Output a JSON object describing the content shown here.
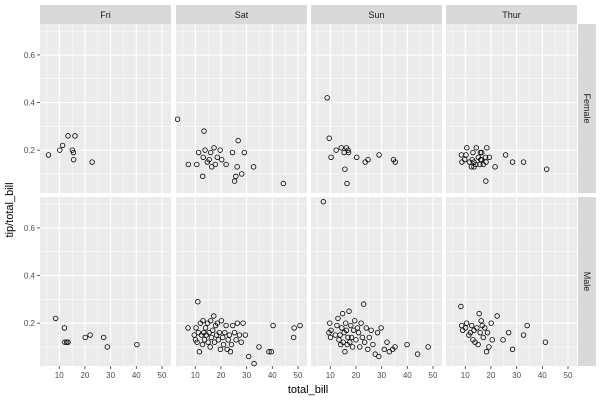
{
  "chart_data": {
    "type": "scatter",
    "facet_cols": [
      "Fri",
      "Sat",
      "Sun",
      "Thur"
    ],
    "facet_rows": [
      "Female",
      "Male"
    ],
    "xlabel": "total_bill",
    "ylabel": "tip/total_bill",
    "xlim": [
      2.5,
      53.5
    ],
    "ylim": [
      0.02,
      0.73
    ],
    "xticks": [
      10,
      20,
      30,
      40,
      50
    ],
    "yticks": [
      0.2,
      0.4,
      0.6
    ],
    "grid": true,
    "colors": {
      "panel_bg": "#ebebeb",
      "strip_bg": "#d9d9d9",
      "grid": "#ffffff",
      "point": "#000000"
    },
    "panels": [
      {
        "row": "Female",
        "col": "Fri",
        "points": [
          [
            5.8,
            0.18
          ],
          [
            10.2,
            0.2
          ],
          [
            11.3,
            0.22
          ],
          [
            13.4,
            0.26
          ],
          [
            15.1,
            0.2
          ],
          [
            15.5,
            0.19
          ],
          [
            15.6,
            0.16
          ],
          [
            16.1,
            0.26
          ],
          [
            22.8,
            0.15
          ]
        ]
      },
      {
        "row": "Female",
        "col": "Sat",
        "points": [
          [
            3.1,
            0.33
          ],
          [
            7.3,
            0.14
          ],
          [
            10.6,
            0.14
          ],
          [
            11.3,
            0.19
          ],
          [
            12.9,
            0.09
          ],
          [
            13.1,
            0.17
          ],
          [
            13.4,
            0.28
          ],
          [
            13.8,
            0.2
          ],
          [
            14.7,
            0.15
          ],
          [
            15.4,
            0.16
          ],
          [
            16.0,
            0.19
          ],
          [
            16.4,
            0.13
          ],
          [
            17.3,
            0.21
          ],
          [
            17.8,
            0.14
          ],
          [
            18.6,
            0.17
          ],
          [
            19.7,
            0.2
          ],
          [
            20.3,
            0.16
          ],
          [
            22.0,
            0.14
          ],
          [
            24.5,
            0.19
          ],
          [
            25.3,
            0.07
          ],
          [
            25.8,
            0.09
          ],
          [
            26.3,
            0.13
          ],
          [
            26.7,
            0.24
          ],
          [
            28.1,
            0.1
          ],
          [
            29.1,
            0.19
          ],
          [
            32.7,
            0.13
          ],
          [
            44.3,
            0.06
          ]
        ]
      },
      {
        "row": "Female",
        "col": "Sun",
        "points": [
          [
            8.8,
            0.42
          ],
          [
            9.6,
            0.25
          ],
          [
            10.3,
            0.17
          ],
          [
            12.3,
            0.2
          ],
          [
            14.3,
            0.21
          ],
          [
            15.4,
            0.19
          ],
          [
            15.7,
            0.12
          ],
          [
            16.3,
            0.21
          ],
          [
            16.5,
            0.06
          ],
          [
            16.9,
            0.2
          ],
          [
            17.1,
            0.19
          ],
          [
            20.3,
            0.17
          ],
          [
            23.6,
            0.15
          ],
          [
            24.7,
            0.16
          ],
          [
            29.0,
            0.18
          ],
          [
            34.6,
            0.16
          ],
          [
            35.3,
            0.15
          ]
        ]
      },
      {
        "row": "Female",
        "col": "Thur",
        "points": [
          [
            8.5,
            0.18
          ],
          [
            8.7,
            0.15
          ],
          [
            9.8,
            0.16
          ],
          [
            10.3,
            0.18
          ],
          [
            10.6,
            0.21
          ],
          [
            11.6,
            0.15
          ],
          [
            12.4,
            0.13
          ],
          [
            12.7,
            0.16
          ],
          [
            13.0,
            0.19
          ],
          [
            13.4,
            0.15
          ],
          [
            13.4,
            0.13
          ],
          [
            14.1,
            0.14
          ],
          [
            14.3,
            0.21
          ],
          [
            15.1,
            0.17
          ],
          [
            15.7,
            0.14
          ],
          [
            15.9,
            0.19
          ],
          [
            16.0,
            0.16
          ],
          [
            16.3,
            0.16
          ],
          [
            16.4,
            0.19
          ],
          [
            17.0,
            0.14
          ],
          [
            17.9,
            0.17
          ],
          [
            18.0,
            0.07
          ],
          [
            18.1,
            0.15
          ],
          [
            18.4,
            0.21
          ],
          [
            19.4,
            0.17
          ],
          [
            21.6,
            0.13
          ],
          [
            25.7,
            0.18
          ],
          [
            28.4,
            0.15
          ],
          [
            32.7,
            0.15
          ],
          [
            41.7,
            0.12
          ]
        ]
      },
      {
        "row": "Male",
        "col": "Fri",
        "points": [
          [
            8.6,
            0.22
          ],
          [
            12.0,
            0.18
          ],
          [
            12.2,
            0.12
          ],
          [
            12.9,
            0.12
          ],
          [
            13.4,
            0.12
          ],
          [
            20.1,
            0.14
          ],
          [
            22.0,
            0.15
          ],
          [
            27.3,
            0.14
          ],
          [
            28.7,
            0.1
          ],
          [
            40.2,
            0.11
          ]
        ]
      },
      {
        "row": "Male",
        "col": "Sat",
        "points": [
          [
            7.2,
            0.18
          ],
          [
            9.6,
            0.15
          ],
          [
            10.1,
            0.13
          ],
          [
            10.3,
            0.18
          ],
          [
            10.7,
            0.12
          ],
          [
            11.0,
            0.29
          ],
          [
            11.2,
            0.16
          ],
          [
            11.6,
            0.08
          ],
          [
            12.0,
            0.2
          ],
          [
            12.4,
            0.15
          ],
          [
            12.8,
            0.11
          ],
          [
            13.0,
            0.21
          ],
          [
            13.3,
            0.16
          ],
          [
            13.6,
            0.13
          ],
          [
            14.0,
            0.18
          ],
          [
            14.3,
            0.15
          ],
          [
            14.8,
            0.2
          ],
          [
            15.0,
            0.12
          ],
          [
            15.4,
            0.16
          ],
          [
            15.8,
            0.1
          ],
          [
            16.0,
            0.21
          ],
          [
            16.3,
            0.14
          ],
          [
            16.8,
            0.17
          ],
          [
            17.2,
            0.23
          ],
          [
            17.5,
            0.12
          ],
          [
            17.9,
            0.19
          ],
          [
            18.3,
            0.15
          ],
          [
            18.6,
            0.2
          ],
          [
            19.0,
            0.13
          ],
          [
            19.4,
            0.16
          ],
          [
            19.8,
            0.09
          ],
          [
            20.2,
            0.21
          ],
          [
            20.7,
            0.14
          ],
          [
            21.0,
            0.11
          ],
          [
            21.5,
            0.16
          ],
          [
            22.0,
            0.19
          ],
          [
            22.4,
            0.09
          ],
          [
            22.8,
            0.13
          ],
          [
            23.3,
            0.15
          ],
          [
            23.7,
            0.08
          ],
          [
            24.1,
            0.11
          ],
          [
            24.6,
            0.19
          ],
          [
            25.3,
            0.16
          ],
          [
            25.9,
            0.13
          ],
          [
            26.4,
            0.2
          ],
          [
            27.2,
            0.15
          ],
          [
            27.9,
            0.12
          ],
          [
            28.6,
            0.2
          ],
          [
            29.5,
            0.15
          ],
          [
            30.8,
            0.06
          ],
          [
            32.9,
            0.03
          ],
          [
            34.8,
            0.1
          ],
          [
            38.7,
            0.08
          ],
          [
            39.6,
            0.08
          ],
          [
            40.3,
            0.19
          ],
          [
            48.3,
            0.14
          ],
          [
            48.5,
            0.18
          ],
          [
            50.8,
            0.19
          ]
        ]
      },
      {
        "row": "Male",
        "col": "Sun",
        "points": [
          [
            7.3,
            0.71
          ],
          [
            9.5,
            0.16
          ],
          [
            9.8,
            0.2
          ],
          [
            10.1,
            0.14
          ],
          [
            10.3,
            0.17
          ],
          [
            12.0,
            0.15
          ],
          [
            12.6,
            0.19
          ],
          [
            13.0,
            0.22
          ],
          [
            13.4,
            0.13
          ],
          [
            13.8,
            0.15
          ],
          [
            14.1,
            0.11
          ],
          [
            14.5,
            0.18
          ],
          [
            14.8,
            0.24
          ],
          [
            15.0,
            0.12
          ],
          [
            15.4,
            0.16
          ],
          [
            15.7,
            0.08
          ],
          [
            16.0,
            0.2
          ],
          [
            16.3,
            0.17
          ],
          [
            16.6,
            0.11
          ],
          [
            16.9,
            0.14
          ],
          [
            17.3,
            0.25
          ],
          [
            17.6,
            0.12
          ],
          [
            18.0,
            0.19
          ],
          [
            18.3,
            0.14
          ],
          [
            18.7,
            0.1
          ],
          [
            19.1,
            0.17
          ],
          [
            19.5,
            0.21
          ],
          [
            20.0,
            0.13
          ],
          [
            20.6,
            0.18
          ],
          [
            21.0,
            0.16
          ],
          [
            21.5,
            0.1
          ],
          [
            22.0,
            0.2
          ],
          [
            22.5,
            0.14
          ],
          [
            23.0,
            0.28
          ],
          [
            23.4,
            0.12
          ],
          [
            24.0,
            0.18
          ],
          [
            24.6,
            0.09
          ],
          [
            25.2,
            0.14
          ],
          [
            25.9,
            0.17
          ],
          [
            26.6,
            0.11
          ],
          [
            27.5,
            0.07
          ],
          [
            28.4,
            0.16
          ],
          [
            28.9,
            0.06
          ],
          [
            29.8,
            0.18
          ],
          [
            31.0,
            0.09
          ],
          [
            32.1,
            0.12
          ],
          [
            33.0,
            0.08
          ],
          [
            34.3,
            0.09
          ],
          [
            35.2,
            0.1
          ],
          [
            39.9,
            0.11
          ],
          [
            44.0,
            0.07
          ],
          [
            48.1,
            0.1
          ]
        ]
      },
      {
        "row": "Male",
        "col": "Thur",
        "points": [
          [
            8.3,
            0.27
          ],
          [
            8.6,
            0.19
          ],
          [
            9.0,
            0.17
          ],
          [
            10.1,
            0.18
          ],
          [
            10.5,
            0.2
          ],
          [
            11.4,
            0.15
          ],
          [
            12.0,
            0.16
          ],
          [
            12.5,
            0.19
          ],
          [
            13.0,
            0.13
          ],
          [
            13.4,
            0.17
          ],
          [
            13.8,
            0.12
          ],
          [
            14.5,
            0.18
          ],
          [
            15.0,
            0.11
          ],
          [
            15.4,
            0.24
          ],
          [
            15.8,
            0.16
          ],
          [
            16.2,
            0.21
          ],
          [
            16.6,
            0.19
          ],
          [
            17.0,
            0.14
          ],
          [
            17.6,
            0.18
          ],
          [
            18.3,
            0.08
          ],
          [
            18.7,
            0.16
          ],
          [
            19.2,
            0.1
          ],
          [
            20.1,
            0.2
          ],
          [
            20.5,
            0.13
          ],
          [
            22.4,
            0.23
          ],
          [
            24.7,
            0.13
          ],
          [
            26.9,
            0.16
          ],
          [
            28.4,
            0.09
          ],
          [
            32.7,
            0.15
          ],
          [
            34.1,
            0.19
          ],
          [
            41.2,
            0.12
          ]
        ]
      }
    ]
  }
}
